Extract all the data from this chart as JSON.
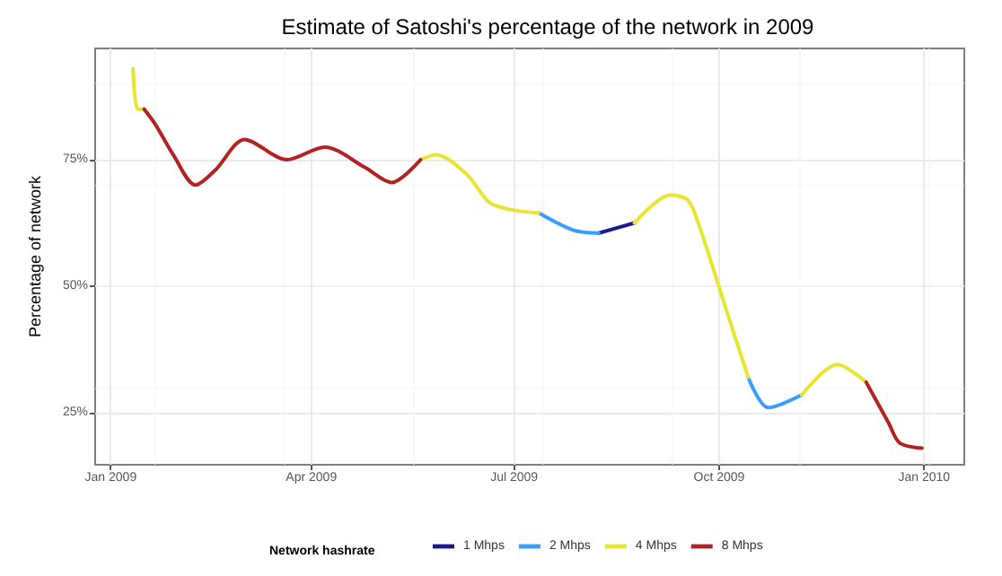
{
  "chart_data": {
    "type": "line",
    "title": "Estimate of Satoshi's percentage of the network in 2009",
    "ylabel": "Percentage of network",
    "legend_title": "Network hashrate",
    "x": [
      "2009-01-11",
      "2009-01-13",
      "2009-01-16",
      "2009-01-21",
      "2009-01-29",
      "2009-02-08",
      "2009-02-17",
      "2009-03-02",
      "2009-03-21",
      "2009-04-07",
      "2009-04-25",
      "2009-05-07",
      "2009-05-20",
      "2009-05-27",
      "2009-06-10",
      "2009-06-20",
      "2009-07-01",
      "2009-07-12",
      "2009-07-28",
      "2009-08-08",
      "2009-08-24",
      "2009-09-09",
      "2009-09-17",
      "2009-09-22",
      "2009-10-03",
      "2009-10-14",
      "2009-10-23",
      "2009-11-07",
      "2009-11-23",
      "2009-12-06",
      "2009-12-16",
      "2009-12-21",
      "2009-12-31"
    ],
    "series": [
      {
        "name": "1 Mhps",
        "color": "#1a1a8c",
        "values": [
          null,
          null,
          null,
          null,
          null,
          null,
          null,
          null,
          null,
          null,
          null,
          null,
          null,
          null,
          null,
          null,
          null,
          null,
          null,
          60.5,
          62.5,
          null,
          null,
          null,
          null,
          null,
          null,
          null,
          null,
          null,
          null,
          null,
          null
        ]
      },
      {
        "name": "2 Mhps",
        "color": "#3a9cff",
        "values": [
          null,
          null,
          null,
          null,
          null,
          null,
          null,
          null,
          null,
          null,
          null,
          null,
          null,
          null,
          null,
          null,
          null,
          64.5,
          61,
          60.5,
          null,
          null,
          null,
          null,
          null,
          32,
          26,
          28.5,
          null,
          null,
          null,
          null,
          null
        ]
      },
      {
        "name": "4 Mhps",
        "color": "#e6e62e",
        "values": [
          93,
          85,
          85,
          null,
          null,
          null,
          null,
          null,
          null,
          null,
          null,
          null,
          75,
          76,
          72,
          66.5,
          65,
          64.5,
          null,
          null,
          62.5,
          68,
          67,
          62,
          47,
          32,
          null,
          28.5,
          34.5,
          31,
          null,
          null,
          null
        ]
      },
      {
        "name": "8 Mhps",
        "color": "#b22222",
        "values": [
          null,
          null,
          85,
          82,
          76,
          70,
          73,
          79,
          75,
          77.5,
          73.5,
          70.5,
          75,
          null,
          null,
          null,
          null,
          null,
          null,
          null,
          null,
          null,
          null,
          null,
          null,
          null,
          null,
          null,
          null,
          31,
          23,
          19,
          18
        ]
      }
    ],
    "xlim": [
      "2008-12-25",
      "2010-01-19"
    ],
    "xticks": [
      {
        "value": "2009-01-01",
        "label": "Jan 2009"
      },
      {
        "value": "2009-04-01",
        "label": "Apr 2009"
      },
      {
        "value": "2009-07-01",
        "label": "Jul 2009"
      },
      {
        "value": "2009-10-01",
        "label": "Oct 2009"
      },
      {
        "value": "2010-01-01",
        "label": "Jan 2010"
      }
    ],
    "ylim": [
      14.7,
      97
    ],
    "yticks": [
      {
        "value": 25,
        "label": "25%"
      },
      {
        "value": 50,
        "label": "50%"
      },
      {
        "value": 75,
        "label": "75%"
      }
    ],
    "grid": true,
    "legend": "bottom"
  }
}
